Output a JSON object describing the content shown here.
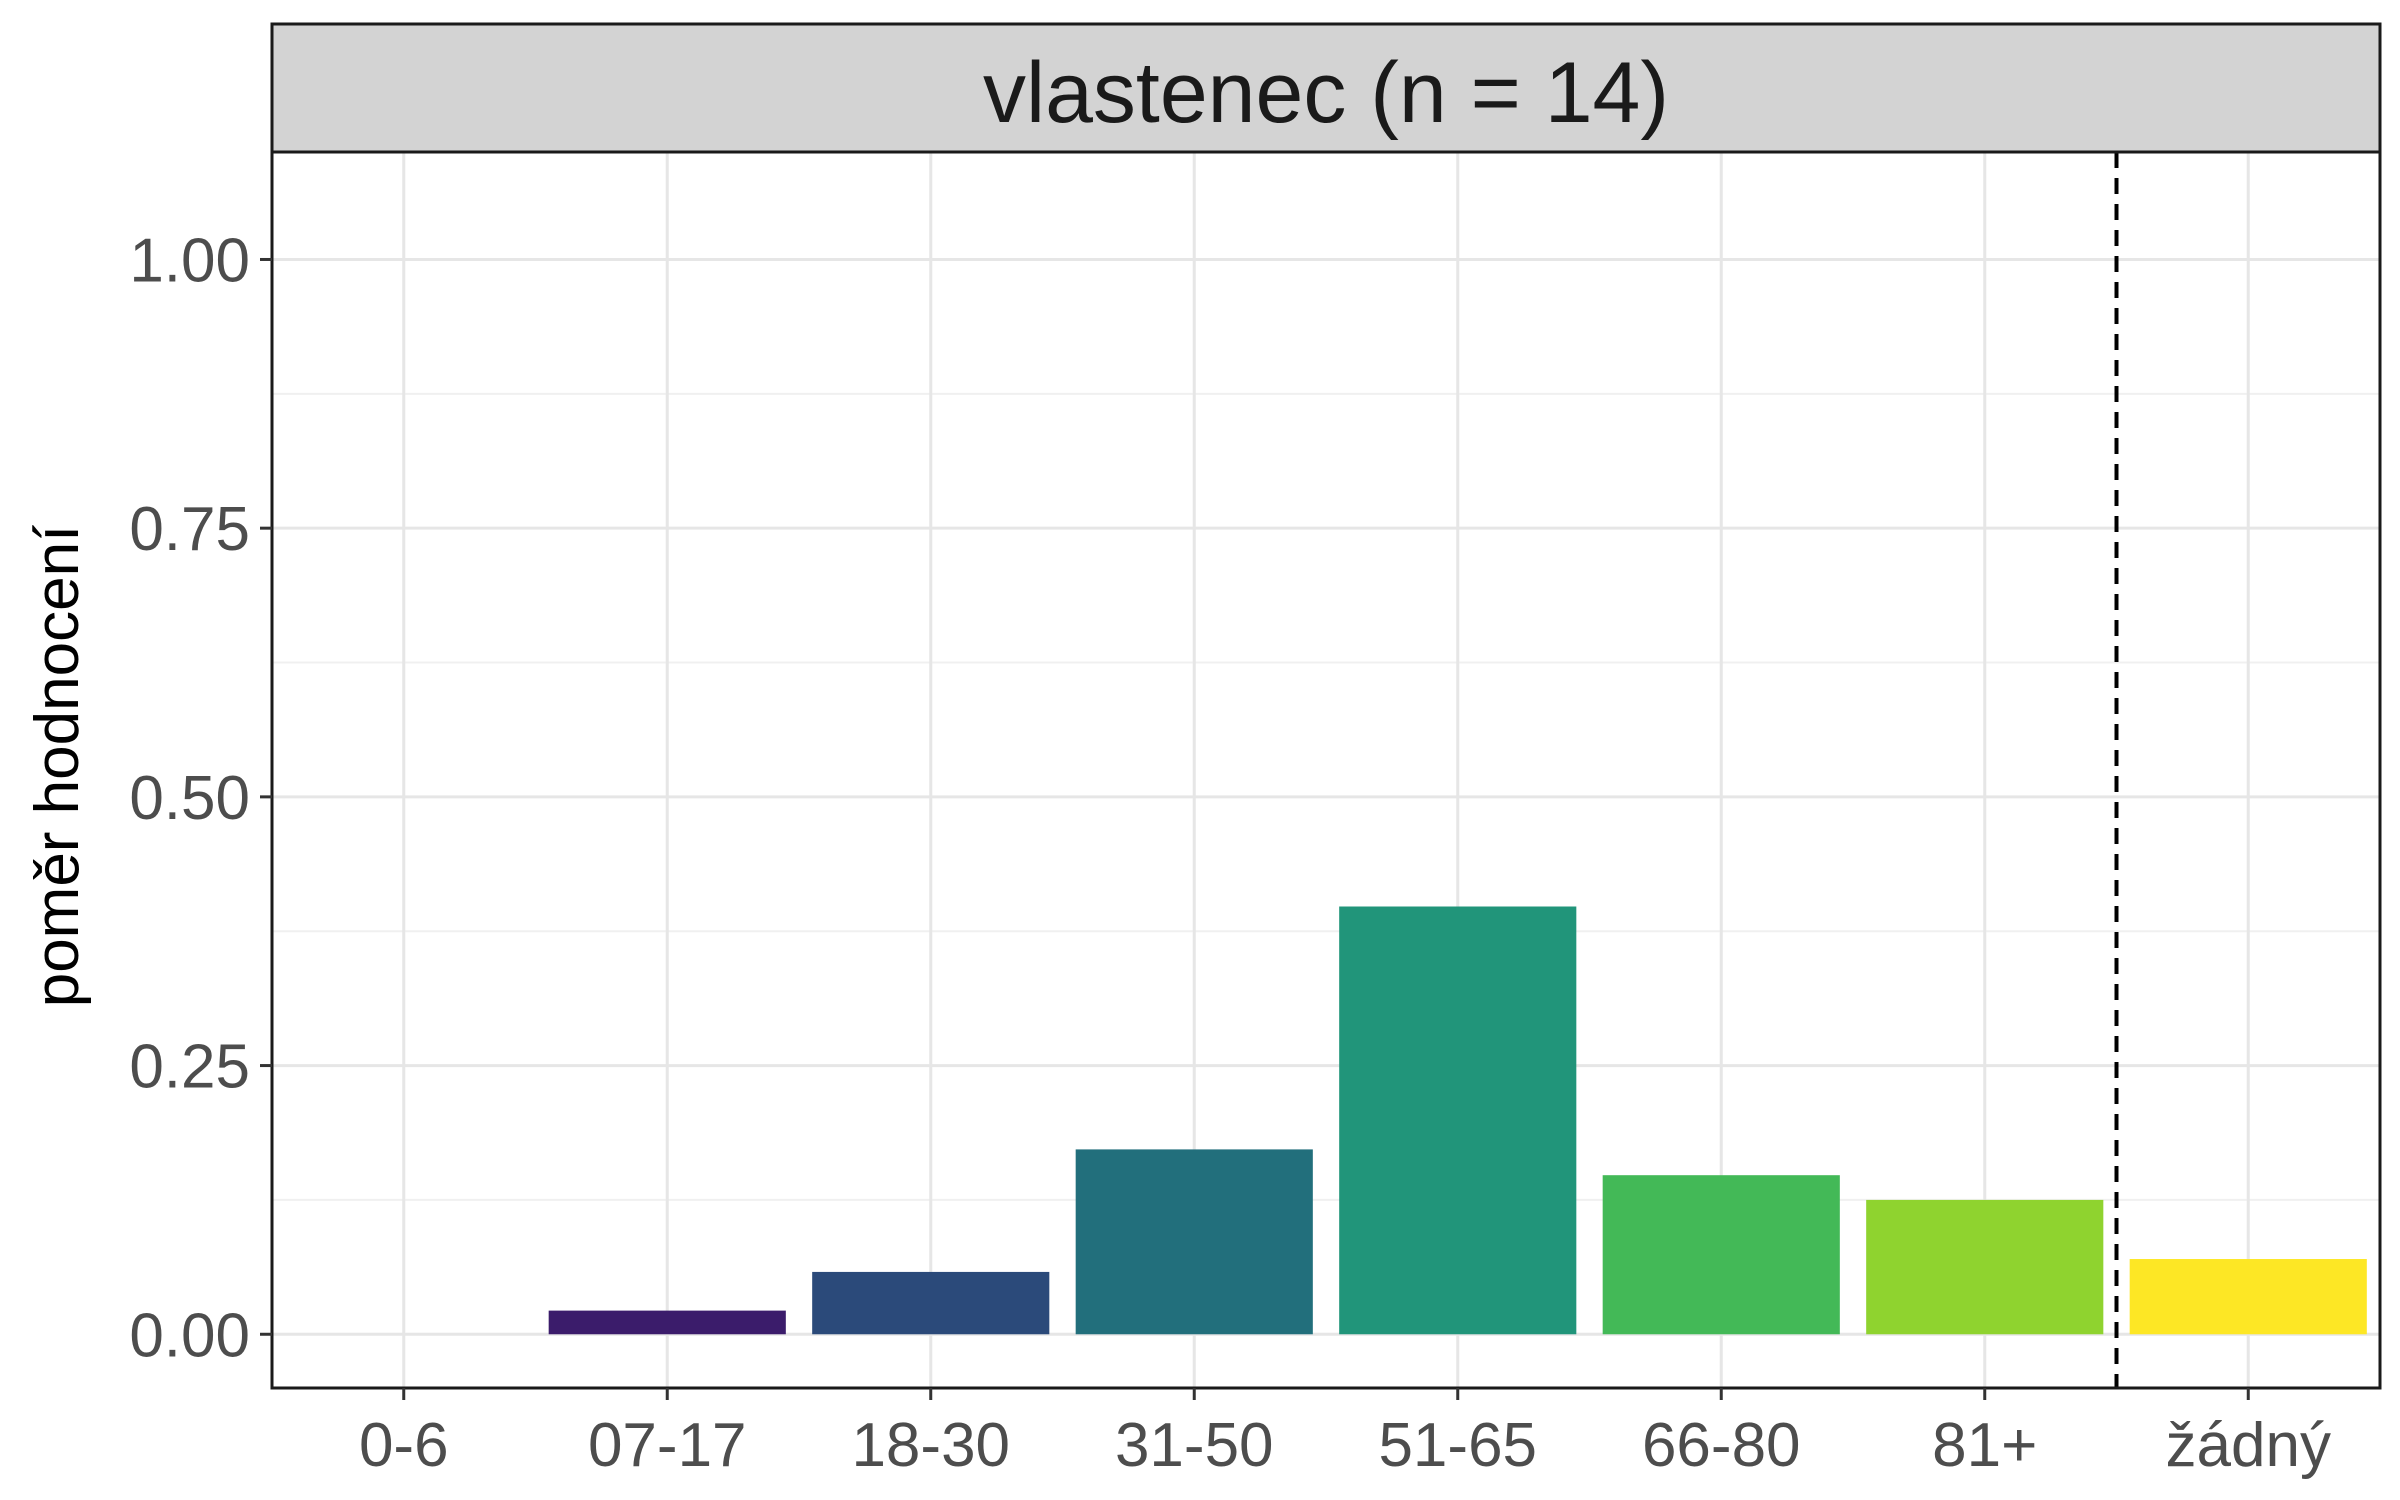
{
  "chart_data": {
    "type": "bar",
    "title": "vlastenec (n = 14)",
    "xlabel": "",
    "ylabel": "poměr hodnocení",
    "categories": [
      "0-6",
      "07-17",
      "18-30",
      "31-50",
      "51-65",
      "66-80",
      "81+",
      "žádný"
    ],
    "values": [
      0.0,
      0.022,
      0.058,
      0.172,
      0.398,
      0.148,
      0.125,
      0.07
    ],
    "colors": [
      "#440154",
      "#3b1c6b",
      "#2b4a7a",
      "#226f7c",
      "#21957a",
      "#43b957",
      "#8fd32f",
      "#fde725"
    ],
    "ylim": [
      -0.05,
      1.1
    ],
    "yticks": [
      "0.00",
      "0.25",
      "0.50",
      "0.75",
      "1.00"
    ],
    "ytick_values": [
      0,
      0.25,
      0.5,
      0.75,
      1.0
    ],
    "reference_line": {
      "between": [
        "81+",
        "žádný"
      ],
      "style": "dashed",
      "color": "#000000"
    },
    "grid": true,
    "strip_color": "#d3d3d3"
  }
}
